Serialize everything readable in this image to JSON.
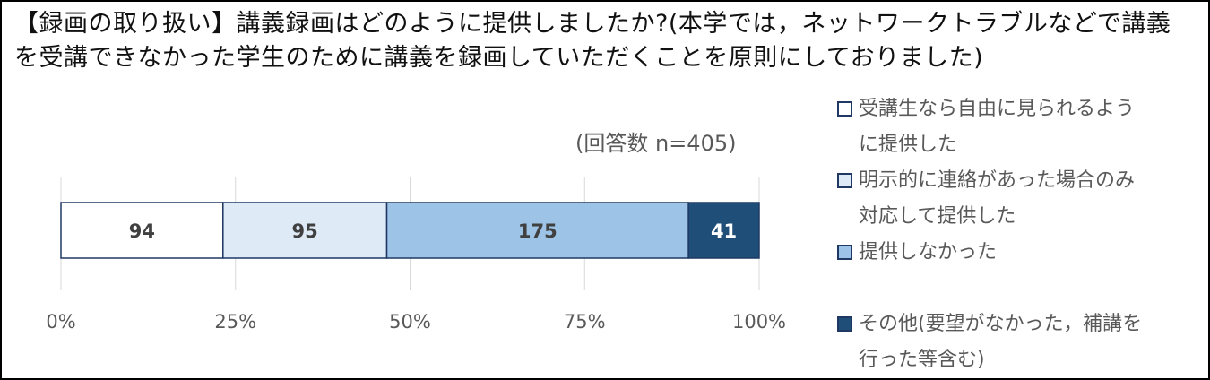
{
  "chart_data": {
    "type": "bar",
    "orientation": "horizontal",
    "stacked": true,
    "title": "【録画の取り扱い】講義録画はどのように提供しましたか?(本学では，ネットワークトラブルなどで講義を受講できなかった学生のために講義を録画していただくことを原則にしておりました)",
    "annotation": "(回答数 n=405)",
    "xlim": [
      0,
      100
    ],
    "x_ticks": [
      "0%",
      "25%",
      "50%",
      "75%",
      "100%"
    ],
    "grid": true,
    "legend_position": "right",
    "series": [
      {
        "name": "受講生なら自由に見られるように提供した",
        "value": 94,
        "color": "#ffffff"
      },
      {
        "name": "明示的に連絡があった場合のみ対応して提供した",
        "value": 95,
        "color": "#deebf7"
      },
      {
        "name": "提供しなかった",
        "value": 175,
        "color": "#9dc3e6"
      },
      {
        "name": "その他(要望がなかった，補講を行った等含む)",
        "value": 41,
        "color": "#1f4e79"
      }
    ],
    "total": 405
  },
  "legend_lines": [
    [
      "受講生なら自由に見られるよう",
      "に提供した"
    ],
    [
      "明示的に連絡があった場合のみ",
      "対応して提供した"
    ],
    [
      "提供しなかった"
    ],
    [
      "その他(要望がなかった，補講を",
      "行った等含む)"
    ]
  ]
}
